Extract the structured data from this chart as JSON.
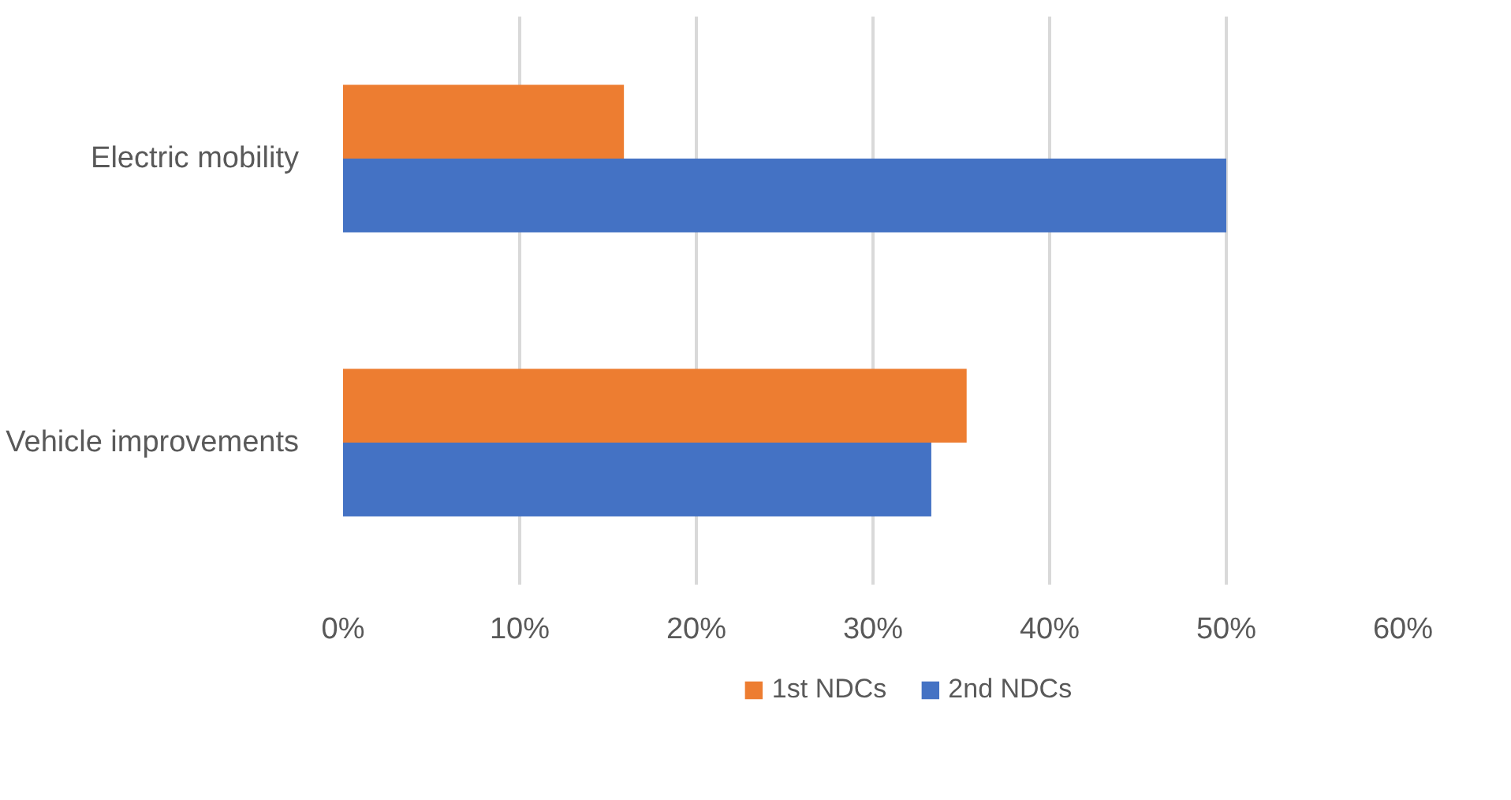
{
  "chart_data": {
    "type": "bar",
    "orientation": "horizontal",
    "categories": [
      "Electric mobility",
      "Vehicle improvements"
    ],
    "series": [
      {
        "name": "1st NDCs",
        "color": "#ed7d31",
        "values": [
          15.9,
          35.3
        ]
      },
      {
        "name": "2nd NDCs",
        "color": "#4472c4",
        "values": [
          50,
          33.3
        ]
      }
    ],
    "xlim": [
      0,
      60
    ],
    "xticks": [
      {
        "value": 0,
        "label": "0%"
      },
      {
        "value": 10,
        "label": "10%"
      },
      {
        "value": 20,
        "label": "20%"
      },
      {
        "value": 30,
        "label": "30%"
      },
      {
        "value": 40,
        "label": "40%"
      },
      {
        "value": 50,
        "label": "50%"
      },
      {
        "value": 60,
        "label": "60%"
      }
    ],
    "grid": "x",
    "legend": "bottom"
  }
}
